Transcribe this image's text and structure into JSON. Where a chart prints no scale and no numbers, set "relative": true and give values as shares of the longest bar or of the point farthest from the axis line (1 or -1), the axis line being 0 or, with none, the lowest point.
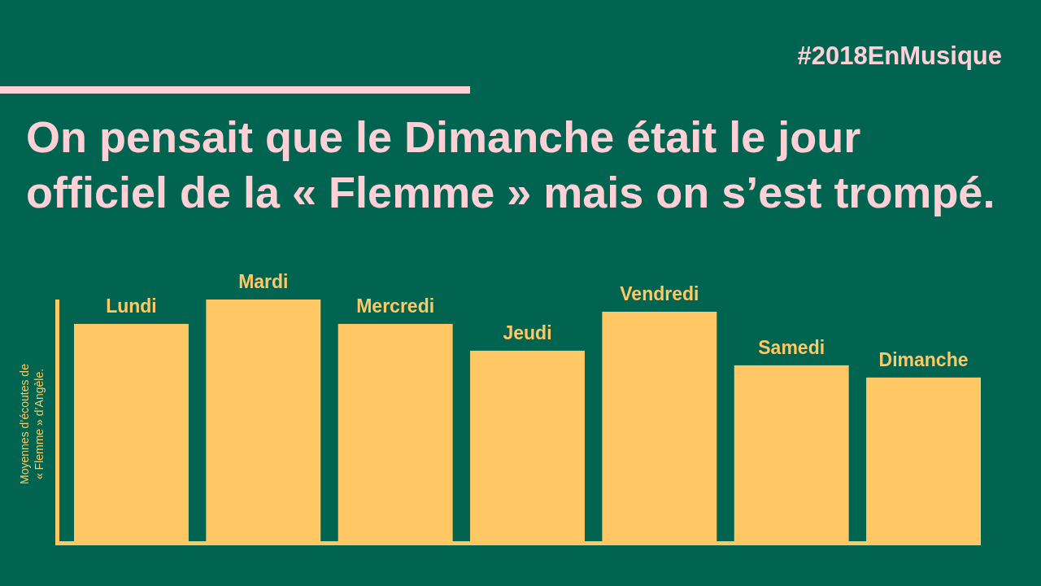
{
  "chart_data": {
    "type": "bar",
    "title": "On pensait que le Dimanche était le jour officiel de la « Flemme » mais on s’est trompé.",
    "ylabel": "Moyennes d’écoutes de « Flemme » d’Angèle.",
    "annotations": [
      "#2018EnMusique"
    ],
    "categories": [
      "Lundi",
      "Mardi",
      "Mercredi",
      "Jeudi",
      "Vendredi",
      "Samedi",
      "Dimanche"
    ],
    "values": [
      0.9,
      1,
      0.9,
      0.79,
      0.95,
      0.73,
      0.68
    ],
    "color": "#ffc864",
    "relative": true
  }
}
